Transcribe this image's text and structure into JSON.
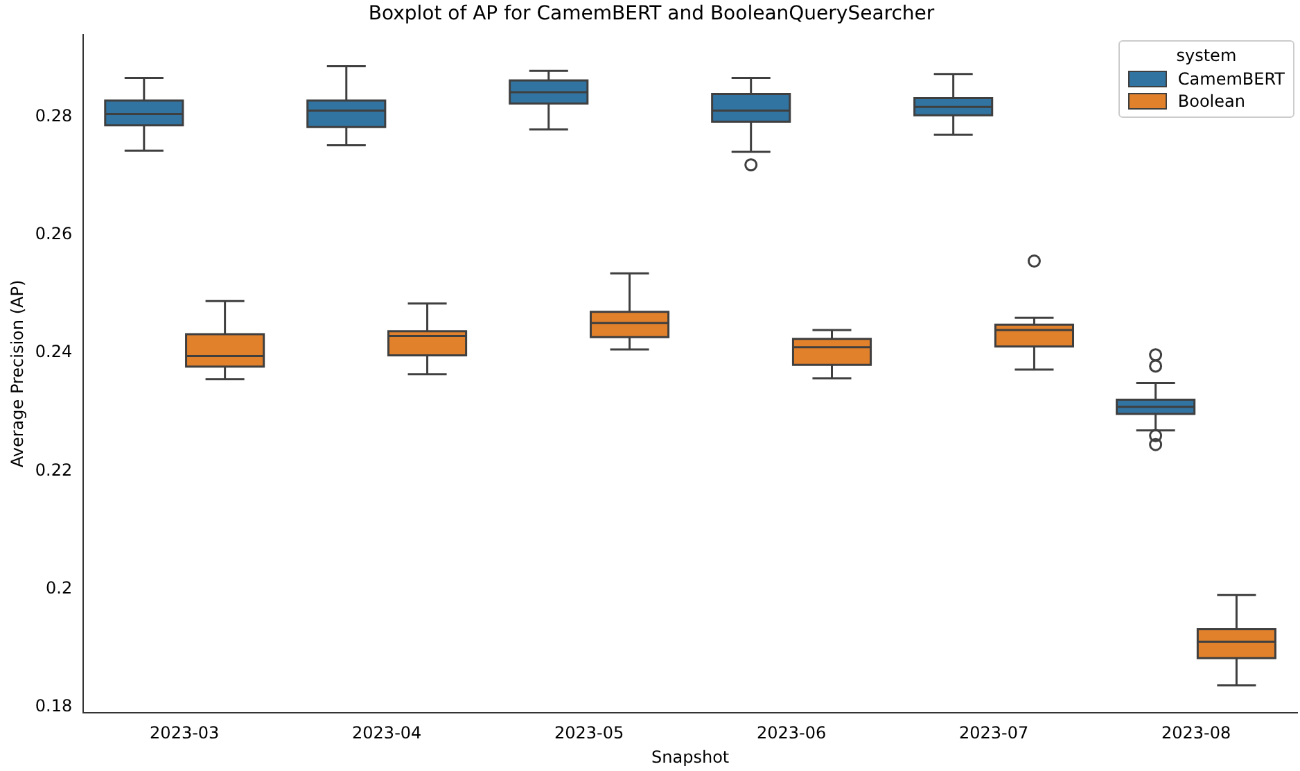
{
  "chart_data": {
    "type": "box",
    "title": "Boxplot of AP for CamemBERT and BooleanQuerySearcher",
    "xlabel": "Snapshot",
    "ylabel": "Average Precision (AP)",
    "legend_title": "system",
    "legend": "top right",
    "grid": false,
    "categories": [
      "2023-03",
      "2023-04",
      "2023-05",
      "2023-06",
      "2023-07",
      "2023-08"
    ],
    "ylim": [
      0.179,
      0.294
    ],
    "yticks": [
      0.18,
      0.2,
      0.22,
      0.24,
      0.26,
      0.28
    ],
    "series": [
      {
        "name": "CamemBERT",
        "color": "#3274a1",
        "boxes": [
          {
            "low": 0.2743,
            "q1": 0.2786,
            "median": 0.2805,
            "q3": 0.2828,
            "high": 0.2866
          },
          {
            "low": 0.2752,
            "q1": 0.2783,
            "median": 0.2811,
            "q3": 0.2828,
            "high": 0.2886
          },
          {
            "low": 0.2779,
            "q1": 0.2823,
            "median": 0.2842,
            "q3": 0.2862,
            "high": 0.2878
          },
          {
            "low": 0.2741,
            "q1": 0.2792,
            "median": 0.2811,
            "q3": 0.2839,
            "high": 0.2866,
            "outliers": [
              0.2719
            ]
          },
          {
            "low": 0.277,
            "q1": 0.2803,
            "median": 0.2817,
            "q3": 0.2832,
            "high": 0.2873
          },
          {
            "low": 0.2269,
            "q1": 0.2297,
            "median": 0.2309,
            "q3": 0.2321,
            "high": 0.2349,
            "outliers": [
              0.2397,
              0.2378,
              0.226,
              0.2245
            ]
          }
        ]
      },
      {
        "name": "Boolean",
        "color": "#e1812c",
        "boxes": [
          {
            "low": 0.2356,
            "q1": 0.2377,
            "median": 0.2395,
            "q3": 0.2432,
            "high": 0.2488
          },
          {
            "low": 0.2364,
            "q1": 0.2396,
            "median": 0.2429,
            "q3": 0.2437,
            "high": 0.2484
          },
          {
            "low": 0.2406,
            "q1": 0.2427,
            "median": 0.2451,
            "q3": 0.247,
            "high": 0.2535
          },
          {
            "low": 0.2357,
            "q1": 0.238,
            "median": 0.241,
            "q3": 0.2424,
            "high": 0.2439
          },
          {
            "low": 0.2372,
            "q1": 0.2411,
            "median": 0.2439,
            "q3": 0.2448,
            "high": 0.246,
            "outliers": [
              0.2556
            ]
          },
          {
            "low": 0.1837,
            "q1": 0.1883,
            "median": 0.1911,
            "q3": 0.1932,
            "high": 0.199
          }
        ]
      }
    ]
  }
}
